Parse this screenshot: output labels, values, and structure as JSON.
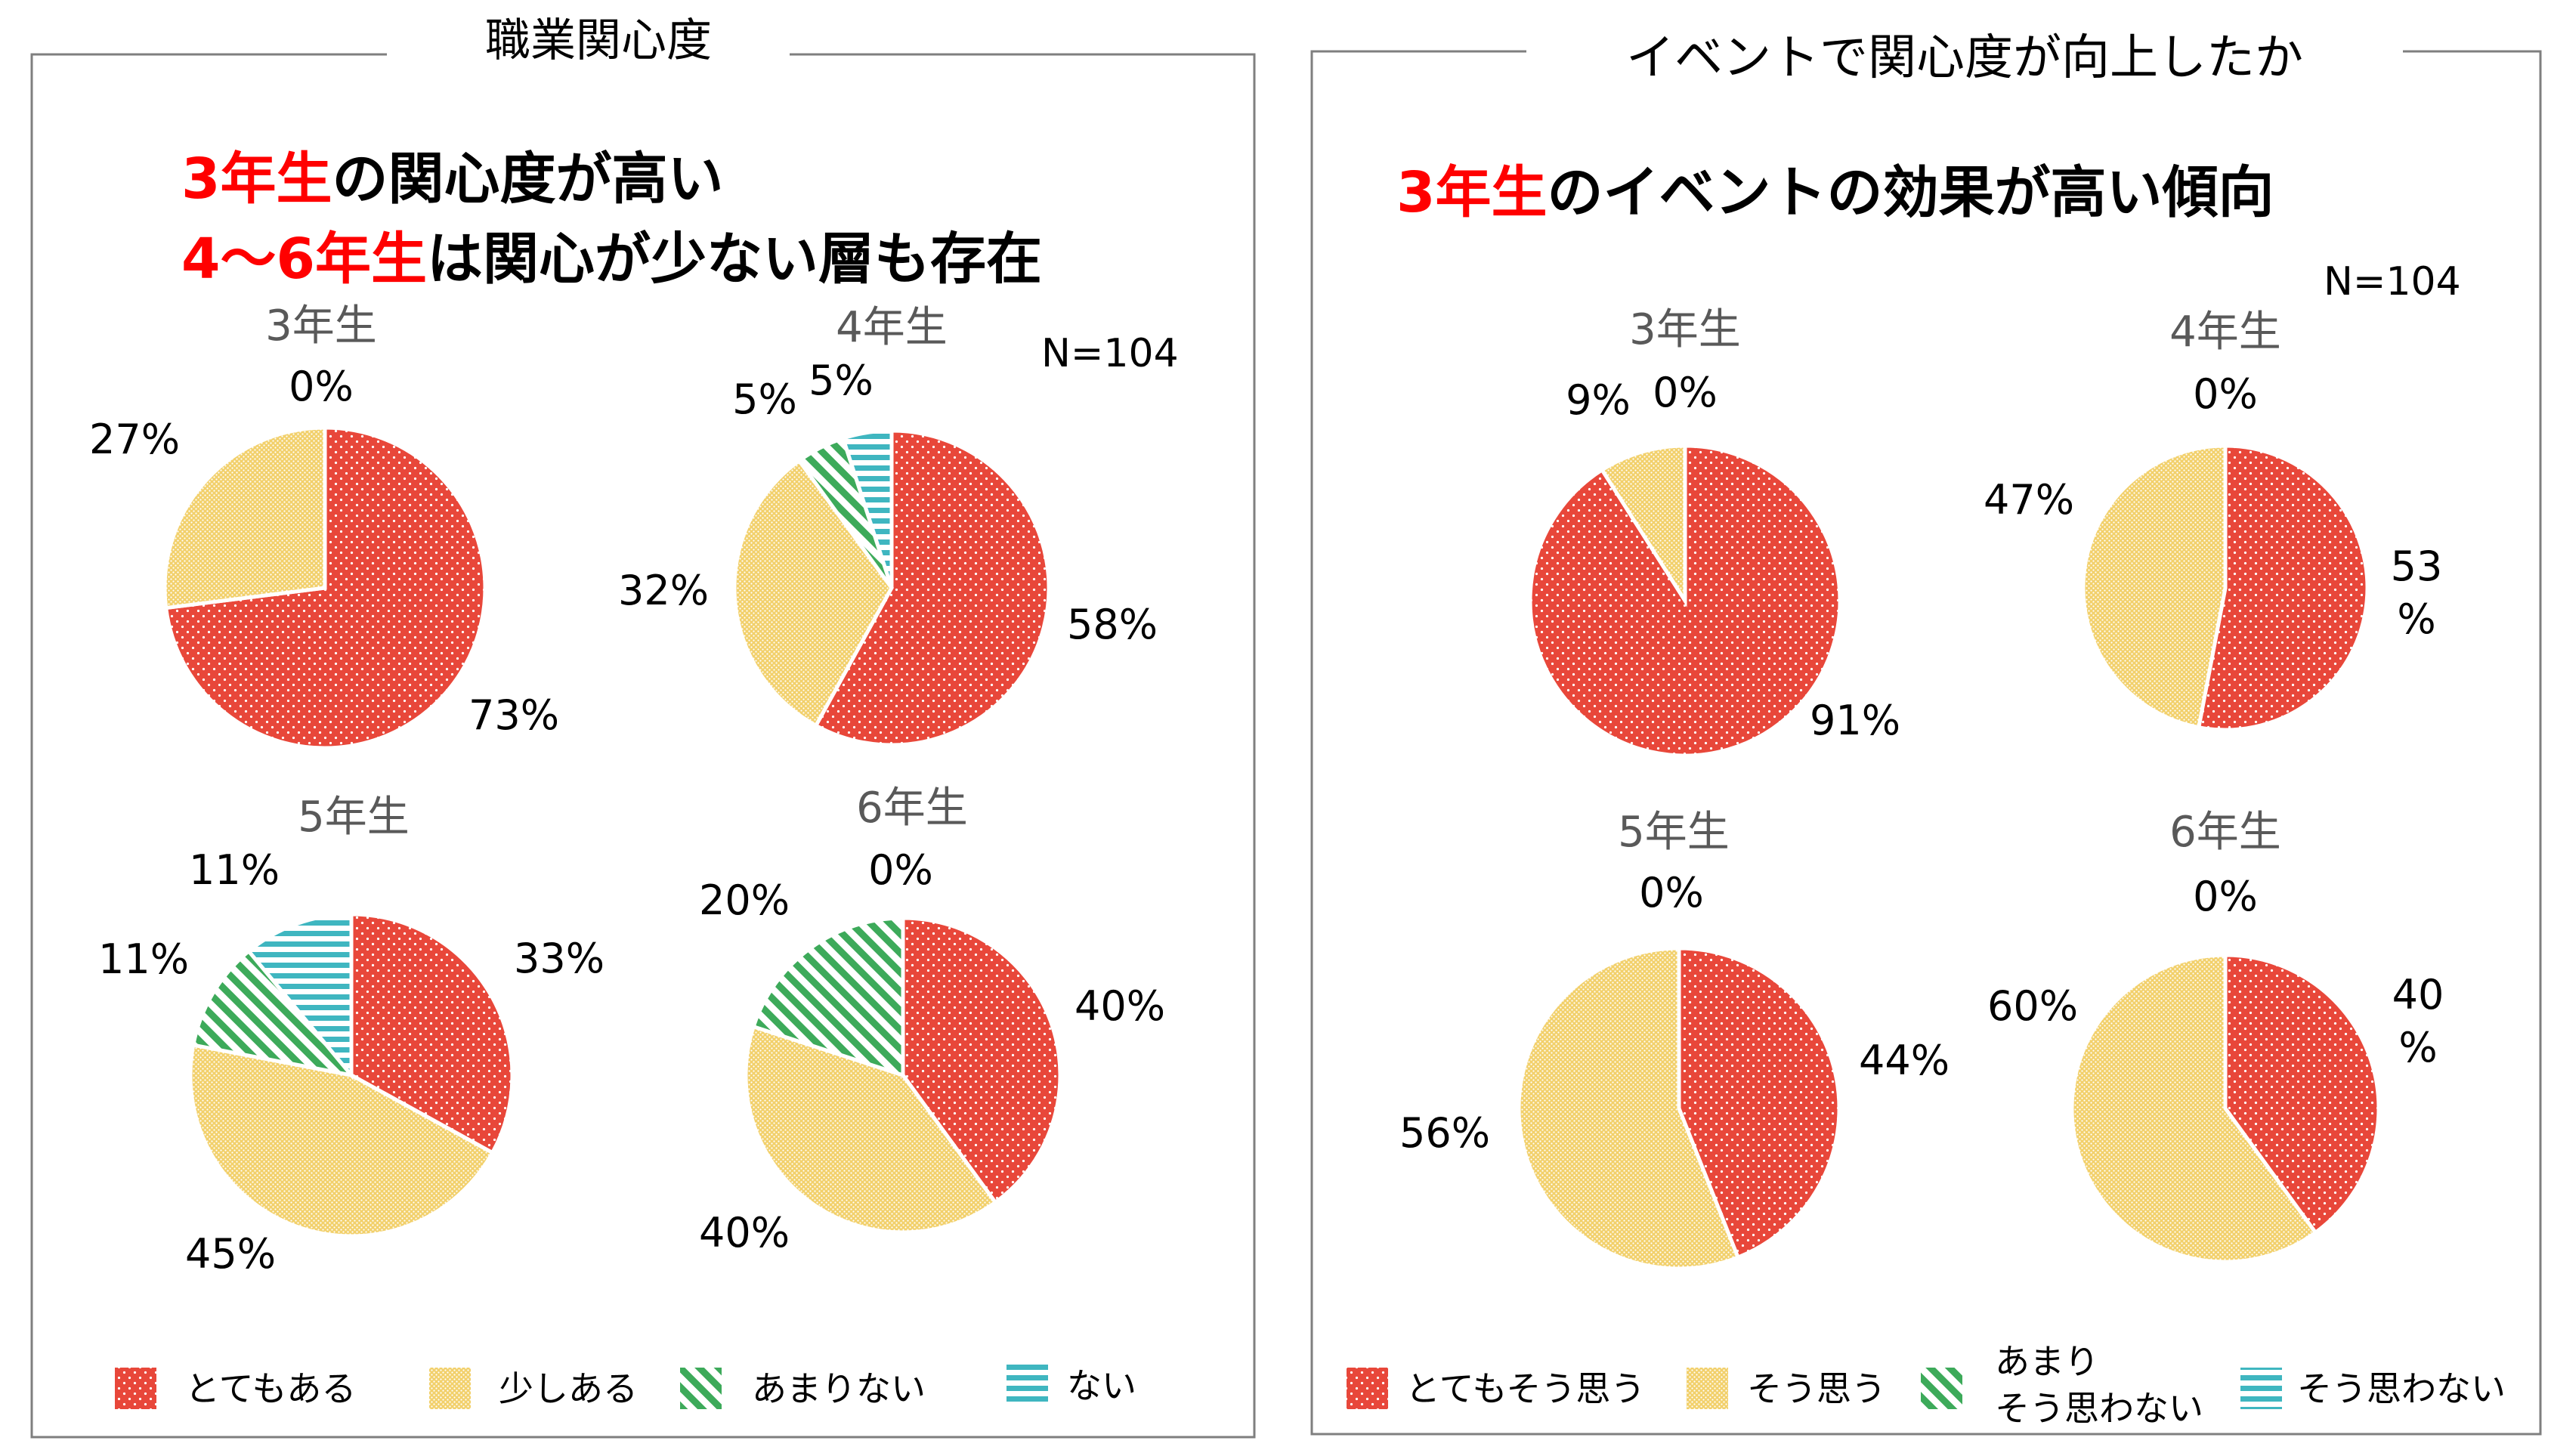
{
  "left_panel": {
    "title": "職業関心度",
    "headline_line1": {
      "highlight": "3年生",
      "rest": "の関心度が高い"
    },
    "headline_line2": {
      "highlight": "4～6年生",
      "rest": "は関心が少ない層も存在"
    },
    "n_label": "N=104",
    "legend": [
      "とてもある",
      "少しある",
      "あまりない",
      "ない"
    ]
  },
  "right_panel": {
    "title": "イベントで関心度が向上したか",
    "headline": {
      "highlight": "3年生",
      "rest": "のイベントの効果が高い傾向"
    },
    "n_label": "N=104",
    "legend": [
      "とてもそう思う",
      "そう思う",
      "あまり\nそう思わない",
      "そう思わない"
    ]
  },
  "colors": {
    "highlight_text": "#ff0000",
    "red": "#e8473a",
    "yellow": "#f2d06b",
    "green": "#3daa5a",
    "teal": "#3fb6c0",
    "grade_label": "#595959",
    "frame": "#7f7f7f"
  },
  "chart_data": [
    {
      "type": "pie",
      "title": "3年生",
      "panel": "職業関心度",
      "categories": [
        "とてもある",
        "少しある",
        "あまりない",
        "ない"
      ],
      "values": [
        73,
        27,
        0,
        0
      ],
      "labels": [
        "73%",
        "27%",
        "0%",
        ""
      ]
    },
    {
      "type": "pie",
      "title": "4年生",
      "panel": "職業関心度",
      "categories": [
        "とてもある",
        "少しある",
        "あまりない",
        "ない"
      ],
      "values": [
        58,
        32,
        5,
        5
      ],
      "labels": [
        "58%",
        "32%",
        "5%",
        "5%"
      ]
    },
    {
      "type": "pie",
      "title": "5年生",
      "panel": "職業関心度",
      "categories": [
        "とてもある",
        "少しある",
        "あまりない",
        "ない"
      ],
      "values": [
        33,
        45,
        11,
        11
      ],
      "labels": [
        "33%",
        "45%",
        "11%",
        "11%"
      ]
    },
    {
      "type": "pie",
      "title": "6年生",
      "panel": "職業関心度",
      "categories": [
        "とてもある",
        "少しある",
        "あまりない",
        "ない"
      ],
      "values": [
        40,
        40,
        20,
        0
      ],
      "labels": [
        "40%",
        "40%",
        "20%",
        "0%"
      ]
    },
    {
      "type": "pie",
      "title": "3年生",
      "panel": "イベントで関心度が向上したか",
      "categories": [
        "とてもそう思う",
        "そう思う",
        "あまりそう思わない",
        "そう思わない"
      ],
      "values": [
        91,
        9,
        0,
        0
      ],
      "labels": [
        "91%",
        "9%",
        "0%",
        ""
      ]
    },
    {
      "type": "pie",
      "title": "4年生",
      "panel": "イベントで関心度が向上したか",
      "categories": [
        "とてもそう思う",
        "そう思う",
        "あまりそう思わない",
        "そう思わない"
      ],
      "values": [
        53,
        47,
        0,
        0
      ],
      "labels": [
        "53\n%",
        "47%",
        "0%",
        ""
      ]
    },
    {
      "type": "pie",
      "title": "5年生",
      "panel": "イベントで関心度が向上したか",
      "categories": [
        "とてもそう思う",
        "そう思う",
        "あまりそう思わない",
        "そう思わない"
      ],
      "values": [
        44,
        56,
        0,
        0
      ],
      "labels": [
        "44%",
        "56%",
        "0%",
        ""
      ]
    },
    {
      "type": "pie",
      "title": "6年生",
      "panel": "イベントで関心度が向上したか",
      "categories": [
        "とてもそう思う",
        "そう思う",
        "あまりそう思わない",
        "そう思わない"
      ],
      "values": [
        40,
        60,
        0,
        0
      ],
      "labels": [
        "40\n%",
        "60%",
        "0%",
        ""
      ]
    }
  ]
}
